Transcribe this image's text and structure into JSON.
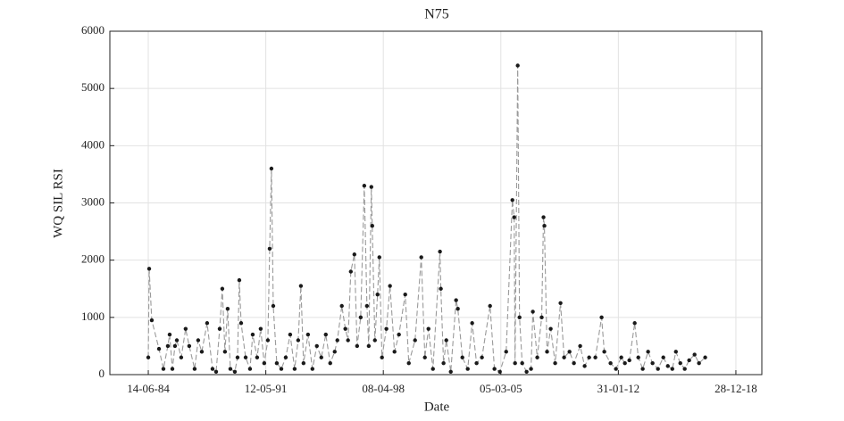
{
  "chart_data": {
    "type": "line",
    "title": "N75",
    "x_label": "Date",
    "y_label": "WQ SIL RSI",
    "x": [
      "1984-06-14",
      "1984-07-03",
      "1984-08-28",
      "1985-01-30",
      "1985-05-05",
      "1985-08-08",
      "1985-09-16",
      "1985-11-13",
      "1986-01-08",
      "1986-02-17",
      "1986-05-22",
      "1986-08-25",
      "1986-11-10",
      "1987-03-06",
      "1987-05-21",
      "1987-08-07",
      "1987-11-29",
      "1988-03-24",
      "1988-06-09",
      "1988-08-25",
      "1988-10-20",
      "1988-12-16",
      "1989-02-12",
      "1989-04-11",
      "1989-07-16",
      "1989-09-12",
      "1989-10-20",
      "1989-11-28",
      "1990-03-05",
      "1990-06-07",
      "1990-08-04",
      "1990-11-07",
      "1991-01-22",
      "1991-04-08",
      "1991-06-25",
      "1991-08-03",
      "1991-09-10",
      "1991-10-19",
      "1992-01-03",
      "1992-04-09",
      "1992-07-13",
      "1992-10-16",
      "1993-01-20",
      "1993-04-06",
      "1993-06-03",
      "1993-07-30",
      "1993-11-03",
      "1994-02-06",
      "1994-05-12",
      "1994-08-16",
      "1994-11-20",
      "1995-02-23",
      "1995-05-30",
      "1995-07-26",
      "1995-10-30",
      "1996-01-14",
      "1996-03-11",
      "1996-05-10",
      "1996-07-26",
      "1996-09-22",
      "1996-12-08",
      "1997-02-23",
      "1997-04-21",
      "1997-05-30",
      "1997-07-25",
      "1997-08-13",
      "1997-10-09",
      "1997-12-05",
      "1998-01-13",
      "1998-03-10",
      "1998-06-13",
      "1998-08-29",
      "1998-12-04",
      "1999-03-09",
      "1999-07-22",
      "1999-10-07",
      "2000-02-18",
      "2000-07-01",
      "2000-09-16",
      "2000-12-02",
      "2001-03-08",
      "2001-08-06",
      "2001-08-25",
      "2001-10-22",
      "2001-12-20",
      "2002-03-26",
      "2002-07-18",
      "2002-08-25",
      "2002-11-30",
      "2003-03-25",
      "2003-06-28",
      "2003-10-01",
      "2004-01-24",
      "2004-07-16",
      "2004-10-19",
      "2005-02-12",
      "2005-06-27",
      "2005-11-08",
      "2005-12-16",
      "2006-01-04",
      "2006-03-02",
      "2006-04-10",
      "2006-06-06",
      "2006-09-09",
      "2006-12-13",
      "2007-01-21",
      "2007-04-26",
      "2007-07-30",
      "2007-09-07",
      "2007-09-26",
      "2007-11-22",
      "2008-02-08",
      "2008-05-14",
      "2008-09-06",
      "2008-11-22",
      "2009-03-18",
      "2009-06-21",
      "2009-11-02",
      "2010-02-06",
      "2010-05-13",
      "2010-09-24",
      "2011-02-05",
      "2011-04-04",
      "2011-08-16",
      "2011-12-10",
      "2012-04-03",
      "2012-06-19",
      "2012-09-23",
      "2013-01-16",
      "2013-04-03",
      "2013-07-07",
      "2013-10-30",
      "2014-02-03",
      "2014-05-30",
      "2014-09-22",
      "2014-12-28",
      "2015-04-03",
      "2015-06-19",
      "2015-09-22",
      "2015-12-26",
      "2016-03-30",
      "2016-07-24",
      "2016-10-27",
      "2017-03-09"
    ],
    "values": [
      300,
      1850,
      950,
      450,
      100,
      500,
      700,
      100,
      500,
      600,
      300,
      800,
      500,
      100,
      600,
      400,
      900,
      100,
      50,
      800,
      1500,
      400,
      1150,
      100,
      50,
      300,
      1650,
      900,
      300,
      100,
      700,
      300,
      800,
      200,
      600,
      2200,
      3600,
      1200,
      200,
      100,
      300,
      700,
      100,
      600,
      1550,
      200,
      700,
      100,
      500,
      300,
      700,
      200,
      400,
      600,
      1200,
      800,
      600,
      1800,
      2100,
      500,
      1000,
      3300,
      1200,
      500,
      3280,
      2600,
      600,
      1400,
      2050,
      300,
      800,
      1550,
      400,
      700,
      1400,
      200,
      600,
      2050,
      300,
      800,
      100,
      2150,
      1500,
      200,
      600,
      50,
      1300,
      1150,
      300,
      100,
      900,
      200,
      300,
      1200,
      100,
      50,
      400,
      3050,
      2750,
      200,
      5400,
      1000,
      200,
      50,
      100,
      1100,
      300,
      1000,
      2750,
      2600,
      400,
      800,
      200,
      1250,
      300,
      400,
      200,
      500,
      150,
      300,
      300,
      1000,
      400,
      200,
      100,
      300,
      200,
      250,
      900,
      300,
      100,
      400,
      200,
      100,
      300,
      150,
      100,
      400,
      200,
      100,
      250,
      350,
      200,
      300
    ],
    "color": "#9a9a9a",
    "marker_color": "#1a1a1a",
    "xlim": [
      "1982-03-12",
      "2020-07-07"
    ],
    "xticks": [
      {
        "value": "1984-06-14",
        "label": "14-06-84"
      },
      {
        "value": "1991-05-12",
        "label": "12-05-91"
      },
      {
        "value": "1998-04-08",
        "label": "08-04-98"
      },
      {
        "value": "2005-03-05",
        "label": "05-03-05"
      },
      {
        "value": "2012-01-31",
        "label": "31-01-12"
      },
      {
        "value": "2018-12-28",
        "label": "28-12-18"
      }
    ],
    "ylim": [
      0,
      6000
    ],
    "yticks": [
      0,
      1000,
      2000,
      3000,
      4000,
      5000,
      6000
    ],
    "grid": true
  }
}
